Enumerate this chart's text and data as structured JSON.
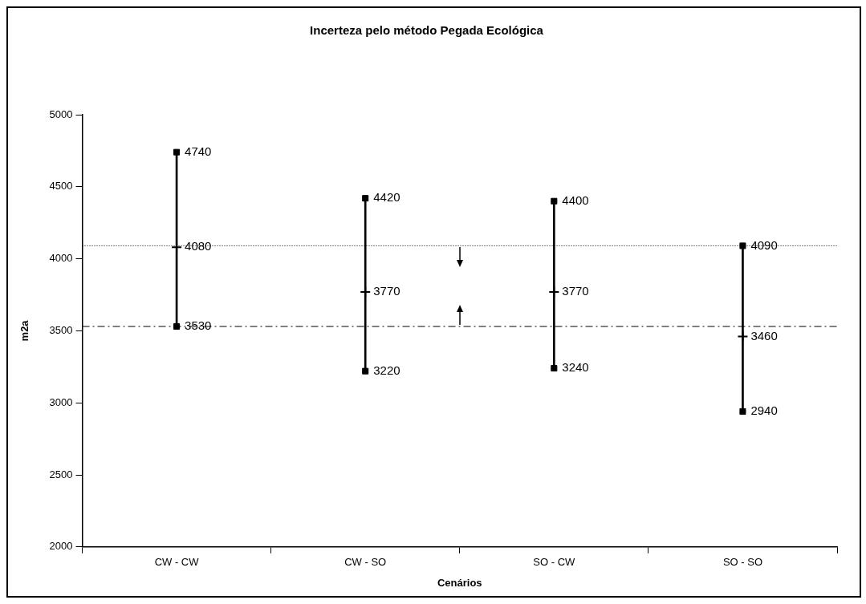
{
  "chart_data": {
    "type": "scatter",
    "title": "Incerteza pelo método Pegada Ecológica",
    "xlabel": "Cenários",
    "ylabel": "m2a",
    "categories": [
      "CW - CW",
      "CW - SO",
      "SO - CW",
      "SO - SO"
    ],
    "series": [
      {
        "type": "bar",
        "color": "#000000",
        "base": [
          3530,
          3220,
          3240,
          2940
        ],
        "values": [
          1210,
          1200,
          1160,
          1150
        ]
      },
      {
        "color": "#000000",
        "marker": "square",
        "values": [
          4740,
          4420,
          4400,
          4090
        ],
        "value_labels": [
          "4740",
          "4420",
          "4400",
          "4090"
        ]
      },
      {
        "color": "#000000",
        "marker": "cross",
        "values": [
          4080,
          3770,
          3770,
          3460
        ],
        "value_labels": [
          "4080",
          "3770",
          "3770",
          "3460"
        ]
      },
      {
        "color": "#000000",
        "marker": "square",
        "values": [
          3530,
          3220,
          3240,
          2940
        ],
        "value_labels": [
          "3530",
          "3220",
          "3240",
          "2940"
        ]
      }
    ],
    "ylim": [
      2000,
      5000
    ],
    "yticks": [
      2000,
      2500,
      3000,
      3500,
      4000,
      4500,
      5000
    ],
    "ref_lines": [
      {
        "axis": "y",
        "value": 4090,
        "line_style": "dotted",
        "color": "#000000"
      },
      {
        "axis": "y",
        "value": 3530,
        "line_style": "dashed",
        "color": "#000000"
      }
    ],
    "grid": false,
    "legend": false
  }
}
